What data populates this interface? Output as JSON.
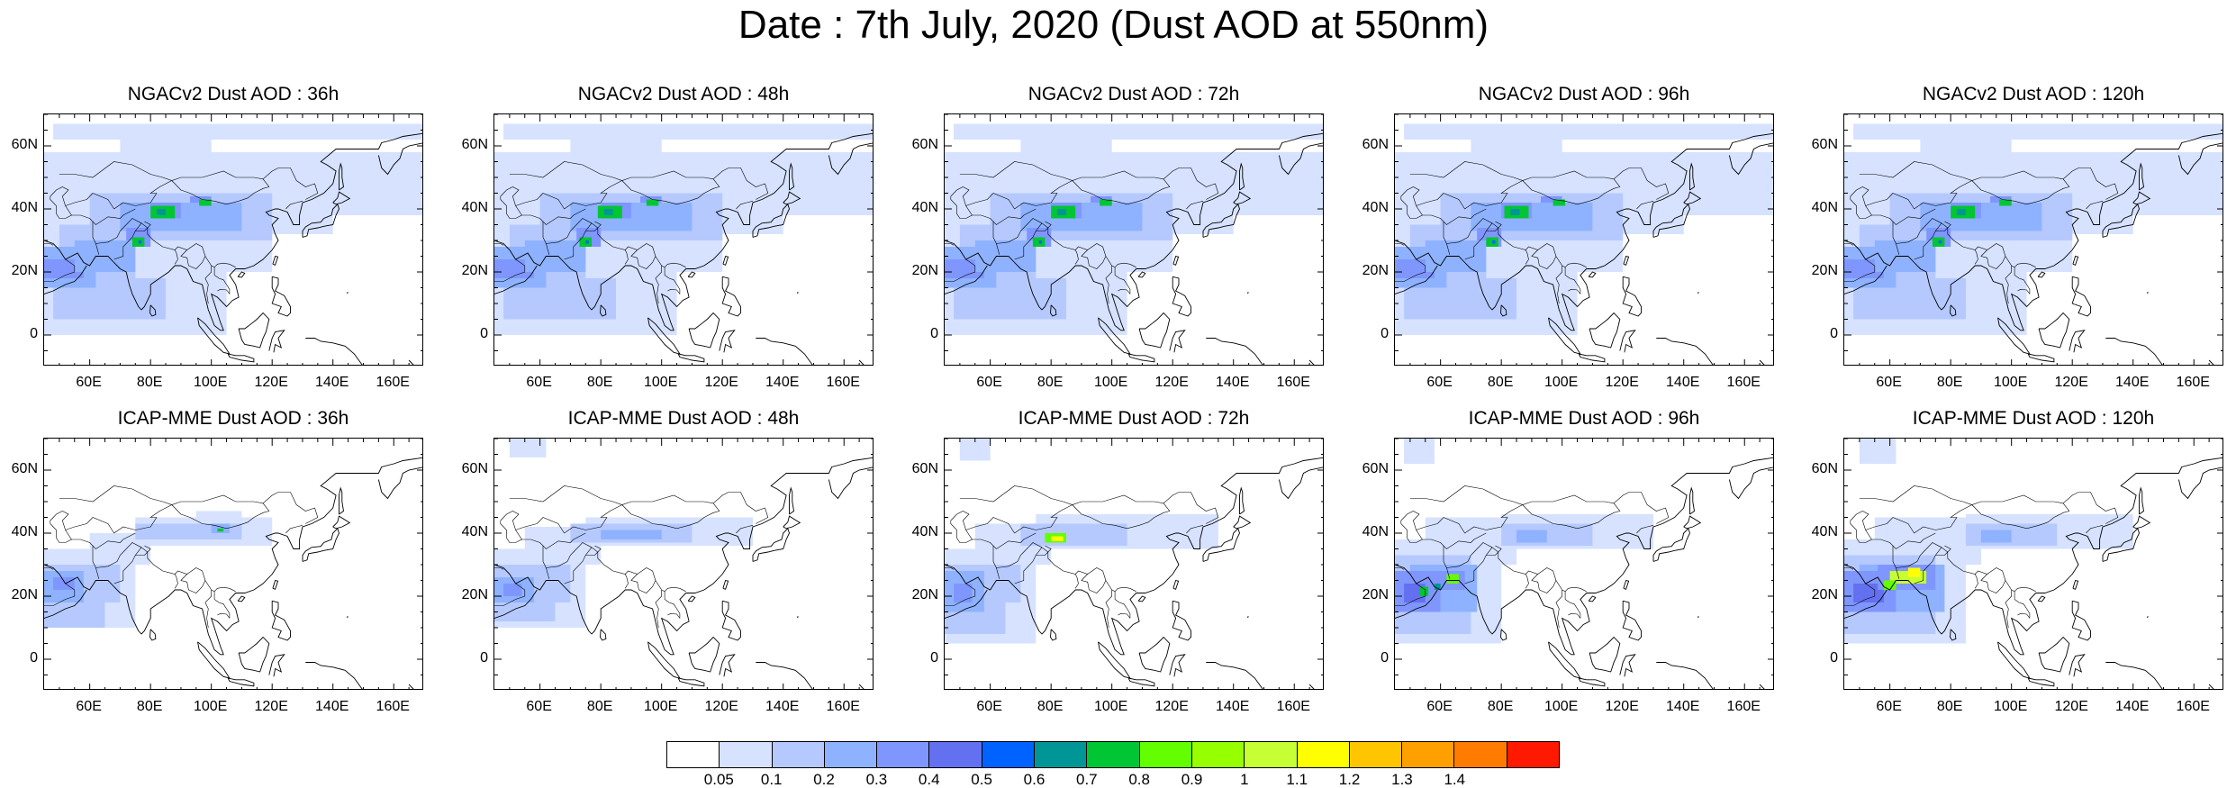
{
  "title": "Date : 7th July, 2020 (Dust AOD at 550nm)",
  "rows": [
    {
      "panels": [
        {
          "title": "NGACv2 Dust AOD : 36h"
        },
        {
          "title": "NGACv2 Dust AOD : 48h"
        },
        {
          "title": "NGACv2 Dust AOD : 72h"
        },
        {
          "title": "NGACv2 Dust AOD : 96h"
        },
        {
          "title": "NGACv2 Dust AOD : 120h"
        }
      ]
    },
    {
      "panels": [
        {
          "title": "ICAP-MME Dust AOD : 36h"
        },
        {
          "title": "ICAP-MME Dust AOD : 48h"
        },
        {
          "title": "ICAP-MME Dust AOD : 72h"
        },
        {
          "title": "ICAP-MME Dust AOD : 96h"
        },
        {
          "title": "ICAP-MME Dust AOD : 120h"
        }
      ]
    }
  ],
  "axes": {
    "lon_range": [
      45,
      170
    ],
    "lat_range": [
      -10,
      70
    ],
    "x_ticks": [
      {
        "value": 60,
        "label": "60E"
      },
      {
        "value": 80,
        "label": "80E"
      },
      {
        "value": 100,
        "label": "100E"
      },
      {
        "value": 120,
        "label": "120E"
      },
      {
        "value": 140,
        "label": "140E"
      },
      {
        "value": 160,
        "label": "160E"
      }
    ],
    "y_ticks": [
      {
        "value": 60,
        "label": "60N"
      },
      {
        "value": 40,
        "label": "40N"
      },
      {
        "value": 20,
        "label": "20N"
      },
      {
        "value": 0,
        "label": "0"
      }
    ]
  },
  "colorbar": {
    "colors": [
      "#ffffff",
      "#d6e2ff",
      "#b5c9ff",
      "#8eb2ff",
      "#7f96ff",
      "#6370f0",
      "#0063ff",
      "#009696",
      "#00c633",
      "#63ff00",
      "#96ff00",
      "#c6ff33",
      "#ffff00",
      "#ffc600",
      "#ffa000",
      "#ff7c00",
      "#ff1900"
    ],
    "labels": [
      "0.05",
      "0.1",
      "0.2",
      "0.3",
      "0.4",
      "0.5",
      "0.6",
      "0.7",
      "0.8",
      "0.9",
      "1",
      "1.1",
      "1.2",
      "1.3",
      "1.4"
    ]
  }
}
